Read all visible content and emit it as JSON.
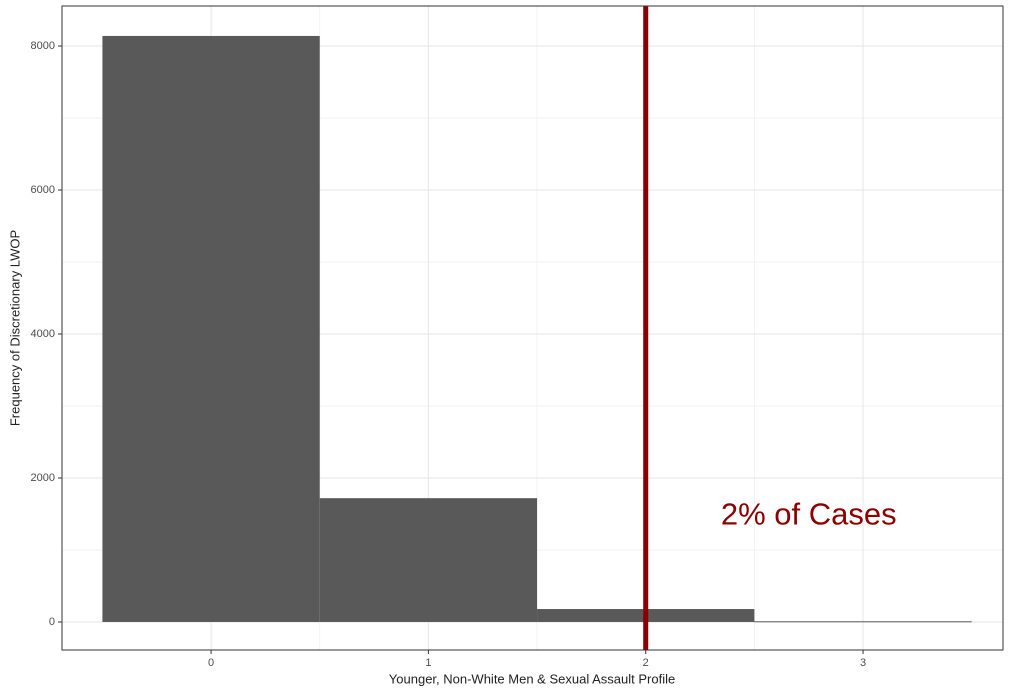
{
  "chart_data": {
    "type": "histogram",
    "x_label": "Younger, Non-White Men & Sexual Assault Profile",
    "y_label": "Frequency of Discretionary LWOP",
    "bins": [
      -0.5,
      0.5,
      1.5,
      2.5,
      3.5
    ],
    "values": [
      8140,
      1720,
      180,
      10
    ],
    "color": "#595959",
    "xlim": [
      -0.686,
      3.644
    ],
    "xticks": [
      0,
      1,
      2,
      3
    ],
    "ylim": [
      -389,
      8556
    ],
    "yticks": [
      0,
      2000,
      4000,
      6000,
      8000
    ],
    "grid": true,
    "vline": {
      "x": 2,
      "color": "#8b0000"
    },
    "annotations": [
      {
        "text": "2% of Cases",
        "x": 2.75,
        "y": 1470,
        "color": "#8b0000"
      }
    ]
  }
}
